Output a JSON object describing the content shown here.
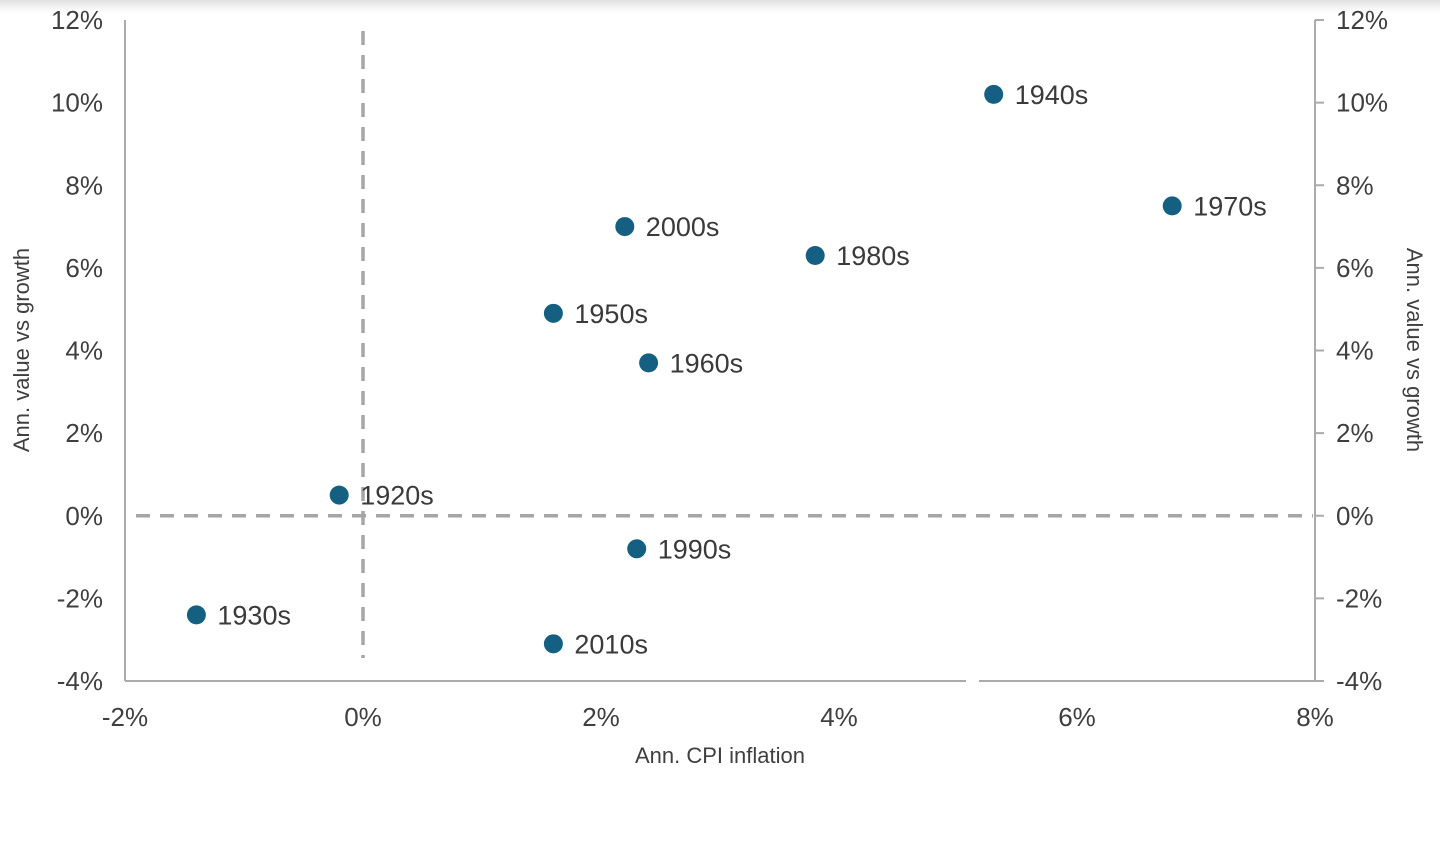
{
  "chart_data": {
    "type": "scatter",
    "title": "",
    "xlabel": "Ann. CPI inflation",
    "ylabel_left": "Ann. value vs growth",
    "ylabel_right": "Ann. value vs growth",
    "xlim": [
      -2,
      8
    ],
    "ylim": [
      -4,
      12
    ],
    "grid": false,
    "legend": "none",
    "x_ticks": [
      {
        "value": -2,
        "label": "-2%"
      },
      {
        "value": 0,
        "label": "0%"
      },
      {
        "value": 2,
        "label": "2%"
      },
      {
        "value": 4,
        "label": "4%"
      },
      {
        "value": 6,
        "label": "6%"
      },
      {
        "value": 8,
        "label": "8%"
      }
    ],
    "y_ticks": [
      {
        "value": 12,
        "label": "12%"
      },
      {
        "value": 10,
        "label": "10%"
      },
      {
        "value": 8,
        "label": "8%"
      },
      {
        "value": 6,
        "label": "6%"
      },
      {
        "value": 4,
        "label": "4%"
      },
      {
        "value": 2,
        "label": "2%"
      },
      {
        "value": 0,
        "label": "0%"
      },
      {
        "value": -2,
        "label": "-2%"
      },
      {
        "value": -4,
        "label": "-4%"
      }
    ],
    "zero_reference_lines": {
      "vertical_at_x": 0,
      "horizontal_at_y": 0
    },
    "points": [
      {
        "label": "1920s",
        "x": -0.2,
        "y": 0.5
      },
      {
        "label": "1930s",
        "x": -1.4,
        "y": -2.4
      },
      {
        "label": "1940s",
        "x": 5.3,
        "y": 10.2
      },
      {
        "label": "1950s",
        "x": 1.6,
        "y": 4.9
      },
      {
        "label": "1960s",
        "x": 2.4,
        "y": 3.7
      },
      {
        "label": "1970s",
        "x": 6.8,
        "y": 7.5
      },
      {
        "label": "1980s",
        "x": 3.8,
        "y": 6.3
      },
      {
        "label": "1990s",
        "x": 2.3,
        "y": -0.8
      },
      {
        "label": "2000s",
        "x": 2.2,
        "y": 7.0
      },
      {
        "label": "2010s",
        "x": 1.6,
        "y": -3.1
      }
    ],
    "colors": {
      "point": "#156082",
      "axis_line": "#ababab",
      "dashed_line": "#a6a6a6",
      "tick_text": "#3f3f3f",
      "point_label_text": "#3a3a3a"
    }
  }
}
